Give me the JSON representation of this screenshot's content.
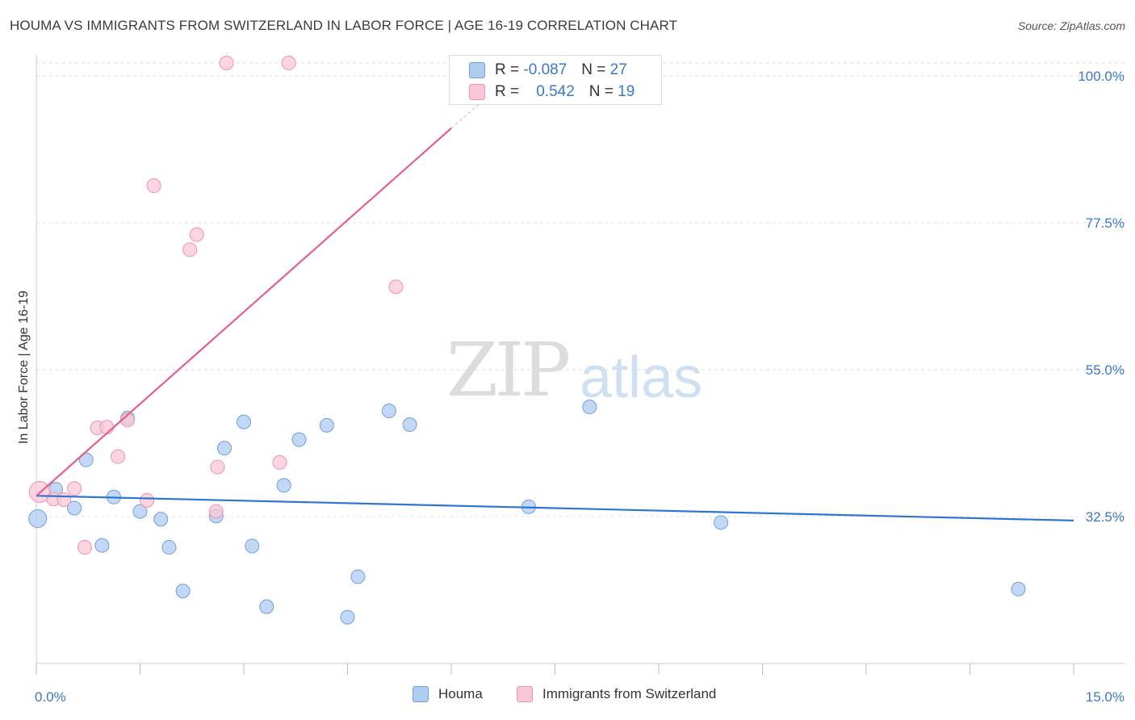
{
  "title": "HOUMA VS IMMIGRANTS FROM SWITZERLAND IN LABOR FORCE | AGE 16-19 CORRELATION CHART",
  "source": "Source: ZipAtlas.com",
  "watermark": {
    "zip": "ZIP",
    "atlas": "atlas"
  },
  "stats": [
    {
      "r_label": "R =",
      "r_value": "-0.087",
      "n_label": "N =",
      "n_value": "27",
      "color": "#aecbf0",
      "border": "#6f9fe0"
    },
    {
      "r_label": "R =",
      "r_value": "0.542",
      "n_label": "N =",
      "n_value": "19",
      "color": "#f9c7d6",
      "border": "#ef93b0"
    }
  ],
  "chart_data": {
    "type": "scatter",
    "title": "HOUMA VS IMMIGRANTS FROM SWITZERLAND IN LABOR FORCE | AGE 16-19 CORRELATION CHART",
    "xlabel": "",
    "ylabel": "In Labor Force | Age 16-19",
    "xlim": [
      0,
      15
    ],
    "ylim": [
      10,
      102
    ],
    "x_tick_labels": [
      "0.0%",
      "15.0%"
    ],
    "y_ticks": [
      32.5,
      55.0,
      77.5,
      100.0
    ],
    "y_tick_labels": [
      "32.5%",
      "55.0%",
      "77.5%",
      "100.0%"
    ],
    "legend_position": "bottom-center",
    "series": [
      {
        "name": "Houma",
        "color": "#6f9fe0",
        "fill": "#aecbf0",
        "line_color": "#2f74d0",
        "points": [
          {
            "x": 0.02,
            "y": 32.2
          },
          {
            "x": 0.28,
            "y": 36.7
          },
          {
            "x": 0.55,
            "y": 33.8
          },
          {
            "x": 0.72,
            "y": 41.2
          },
          {
            "x": 0.95,
            "y": 28.1
          },
          {
            "x": 1.12,
            "y": 35.5
          },
          {
            "x": 1.32,
            "y": 47.6
          },
          {
            "x": 1.5,
            "y": 33.3
          },
          {
            "x": 1.8,
            "y": 32.1
          },
          {
            "x": 1.92,
            "y": 27.8
          },
          {
            "x": 2.12,
            "y": 21.1
          },
          {
            "x": 2.6,
            "y": 32.6
          },
          {
            "x": 2.72,
            "y": 43.0
          },
          {
            "x": 3.0,
            "y": 47.0
          },
          {
            "x": 3.12,
            "y": 28.0
          },
          {
            "x": 3.33,
            "y": 18.7
          },
          {
            "x": 3.58,
            "y": 37.3
          },
          {
            "x": 3.8,
            "y": 44.3
          },
          {
            "x": 4.2,
            "y": 46.5
          },
          {
            "x": 4.5,
            "y": 17.1
          },
          {
            "x": 4.65,
            "y": 23.3
          },
          {
            "x": 5.1,
            "y": 48.7
          },
          {
            "x": 5.4,
            "y": 46.6
          },
          {
            "x": 7.12,
            "y": 34.0
          },
          {
            "x": 8.0,
            "y": 49.3
          },
          {
            "x": 9.9,
            "y": 31.6
          },
          {
            "x": 14.2,
            "y": 21.4
          }
        ],
        "trend": {
          "x0": 0.0,
          "y0": 35.7,
          "x1": 15.0,
          "y1": 31.9
        }
      },
      {
        "name": "Immigrants from Switzerland",
        "color": "#ef93b0",
        "fill": "#f9c7d6",
        "line_color": "#e2608a",
        "points": [
          {
            "x": 0.05,
            "y": 36.3
          },
          {
            "x": 0.25,
            "y": 35.2
          },
          {
            "x": 0.4,
            "y": 35.1
          },
          {
            "x": 0.55,
            "y": 36.8
          },
          {
            "x": 0.7,
            "y": 27.8
          },
          {
            "x": 0.88,
            "y": 46.1
          },
          {
            "x": 1.02,
            "y": 46.2
          },
          {
            "x": 1.18,
            "y": 41.7
          },
          {
            "x": 1.32,
            "y": 47.3
          },
          {
            "x": 1.6,
            "y": 35.0
          },
          {
            "x": 1.7,
            "y": 83.2
          },
          {
            "x": 2.22,
            "y": 73.4
          },
          {
            "x": 2.32,
            "y": 75.7
          },
          {
            "x": 2.6,
            "y": 33.3
          },
          {
            "x": 2.62,
            "y": 40.1
          },
          {
            "x": 2.75,
            "y": 102.0
          },
          {
            "x": 3.52,
            "y": 40.8
          },
          {
            "x": 3.65,
            "y": 102.0
          },
          {
            "x": 5.2,
            "y": 67.7
          }
        ],
        "trend": {
          "x0": 0.0,
          "y0": 35.7,
          "x1": 6.0,
          "y1": 92.0
        },
        "trend_dashed_extension": {
          "x0": 6.0,
          "y0": 92.0,
          "x1": 6.6,
          "y1": 97.5
        }
      }
    ]
  }
}
